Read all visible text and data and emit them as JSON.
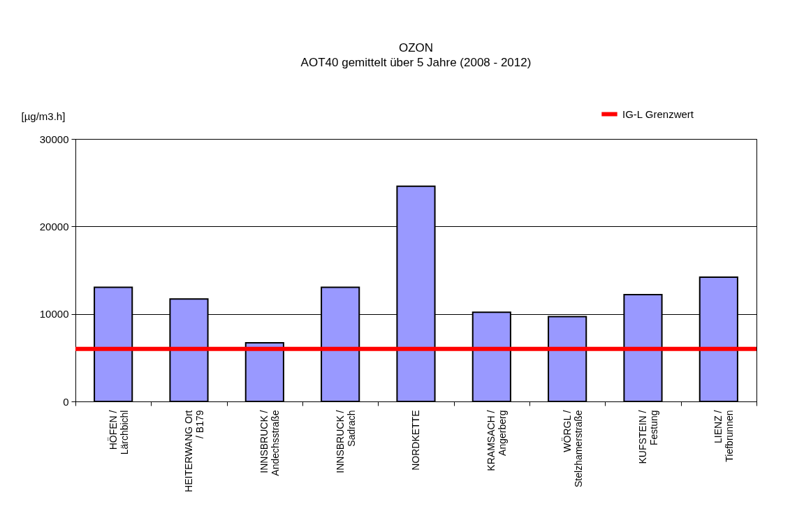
{
  "chart_data": {
    "type": "bar",
    "title": "OZON",
    "subtitle": "AOT40 gemittelt über 5 Jahre (2008 - 2012)",
    "ylabel": "[µg/m3.h]",
    "categories": [
      "HÖFEN /\nLärchbichl",
      "HEITERWANG Ort\n/ B179",
      "INNSBRUCK /\nAndechsstraße",
      "INNSBRUCK /\nSadrach",
      "NORDKETTE",
      "KRAMSACH /\nAngerberg",
      "WÖRGL /\nStelzhamerstraße",
      "KUFSTEIN /\nFestung",
      "LIENZ /\nTiefbrunnen"
    ],
    "values": [
      13050,
      11700,
      6700,
      13050,
      24600,
      10200,
      9700,
      12200,
      14200
    ],
    "color": "#9999ff",
    "ylim": [
      0,
      30000
    ],
    "yticks": [
      0,
      10000,
      20000,
      30000
    ],
    "grid": "y",
    "ref_lines": [
      {
        "axis": "y",
        "value": 6000,
        "label": "IG-L Grenzwert",
        "color": "#ff0000"
      }
    ],
    "legend": "top right"
  }
}
